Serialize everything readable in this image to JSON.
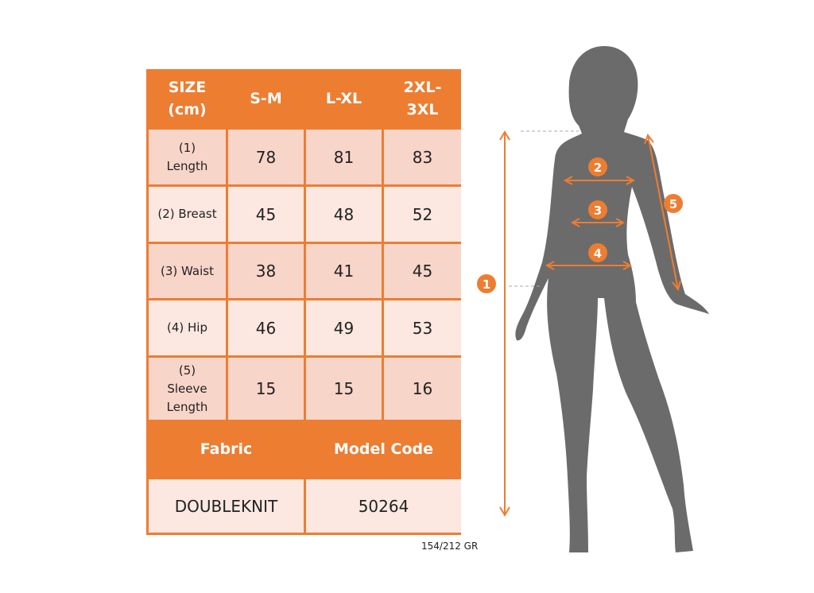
{
  "table": {
    "header": [
      "SIZE (cm)",
      "S-M",
      "L-XL",
      "2XL-3XL"
    ],
    "header_lines": [
      [
        "SIZE",
        "(cm)"
      ],
      [
        "S-M"
      ],
      [
        "L-XL"
      ],
      [
        "2XL-",
        "3XL"
      ]
    ],
    "rows": [
      {
        "label_lines": [
          "(1)",
          "Length"
        ],
        "values": [
          "78",
          "81",
          "83"
        ]
      },
      {
        "label_lines": [
          "(2) Breast"
        ],
        "values": [
          "45",
          "48",
          "52"
        ]
      },
      {
        "label_lines": [
          "(3) Waist"
        ],
        "values": [
          "38",
          "41",
          "45"
        ]
      },
      {
        "label_lines": [
          "(4) Hip"
        ],
        "values": [
          "46",
          "49",
          "53"
        ]
      },
      {
        "label_lines": [
          "(5)",
          "Sleeve",
          "Length"
        ],
        "values": [
          "15",
          "15",
          "16"
        ]
      }
    ],
    "fabric_header": "Fabric",
    "model_code_header": "Model Code",
    "fabric_value": "DOUBLEKNIT",
    "model_code_value": "50264"
  },
  "note": "154/212 GR",
  "figure": {
    "markers": [
      "1",
      "2",
      "3",
      "4",
      "5"
    ]
  },
  "colors": {
    "accent": "#ED7D31",
    "cell_dark": "#F8D5C9",
    "cell_light": "#FCE8E1",
    "silhouette": "#6B6B6B"
  }
}
